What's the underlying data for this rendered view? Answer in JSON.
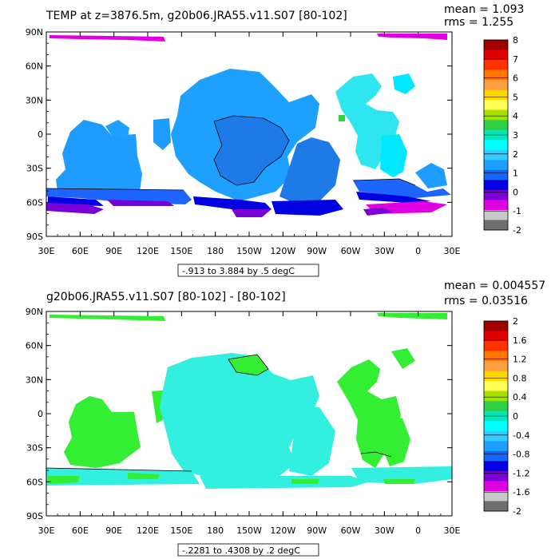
{
  "chart_data": [
    {
      "type": "heatmap",
      "title": "TEMP at z=3876.5m, g20b06.JRA55.v11.S07 [80-102]",
      "mean_label": "mean = 1.093",
      "rms_label": "rms = 1.255",
      "caption": "-.913 to 3.884 by .5 degC",
      "x_ticks": [
        "30E",
        "60E",
        "90E",
        "120E",
        "150E",
        "180",
        "150W",
        "120W",
        "90W",
        "60W",
        "30W",
        "0",
        "30E"
      ],
      "y_ticks": [
        "90N",
        "60N",
        "30N",
        "0",
        "30S",
        "60S",
        "90S"
      ],
      "colorbar": {
        "labels": [
          "8",
          "7",
          "6",
          "5",
          "4",
          "3",
          "2",
          "1",
          "0",
          "-1",
          "-2"
        ],
        "colors": [
          "#a00000",
          "#e00000",
          "#ff3300",
          "#ff7700",
          "#ffa040",
          "#ffd700",
          "#ffff55",
          "#a8e000",
          "#30d040",
          "#00e8c0",
          "#00ffff",
          "#33ccff",
          "#1a9fff",
          "#1464ff",
          "#0000e0",
          "#7a00d8",
          "#e000e0",
          "#c8c8c8",
          "#6e6e6e"
        ]
      }
    },
    {
      "type": "heatmap",
      "title": "g20b06.JRA55.v11.S07 [80-102] -  [80-102]",
      "mean_label": "mean = 0.004557",
      "rms_label": "rms = 0.03516",
      "caption": "-.2281 to .4308 by .2 degC",
      "x_ticks": [
        "30E",
        "60E",
        "90E",
        "120E",
        "150E",
        "180",
        "150W",
        "120W",
        "90W",
        "60W",
        "30W",
        "0",
        "30E"
      ],
      "y_ticks": [
        "90N",
        "60N",
        "30N",
        "0",
        "30S",
        "60S",
        "90S"
      ],
      "colorbar": {
        "labels": [
          "2",
          "1.6",
          "1.2",
          "0.8",
          "0.4",
          "0",
          "-0.4",
          "-0.8",
          "-1.2",
          "-1.6",
          "-2"
        ],
        "colors": [
          "#a00000",
          "#e00000",
          "#ff3300",
          "#ff7700",
          "#ffa040",
          "#ffd700",
          "#ffff55",
          "#a8e000",
          "#30d040",
          "#00e8c0",
          "#00ffff",
          "#33ccff",
          "#1a9fff",
          "#1464ff",
          "#0000e0",
          "#7a00d8",
          "#e000e0",
          "#c8c8c8",
          "#6e6e6e"
        ]
      }
    }
  ],
  "colors": {
    "panel1": {
      "pacific_main": "#1ea0ff",
      "pacific_deep": "#1e7ae6",
      "indian": "#1e9cff",
      "atlantic": "#2ee6f0",
      "cyan": "#00e8ff",
      "southern_blue": "#1e64ff",
      "southern_deep": "#0000e0",
      "purple": "#7a00d8",
      "magenta": "#e000e0",
      "green_dot": "#30d040"
    },
    "panel2": {
      "main": "#33efdf",
      "green": "#33ee33"
    }
  }
}
